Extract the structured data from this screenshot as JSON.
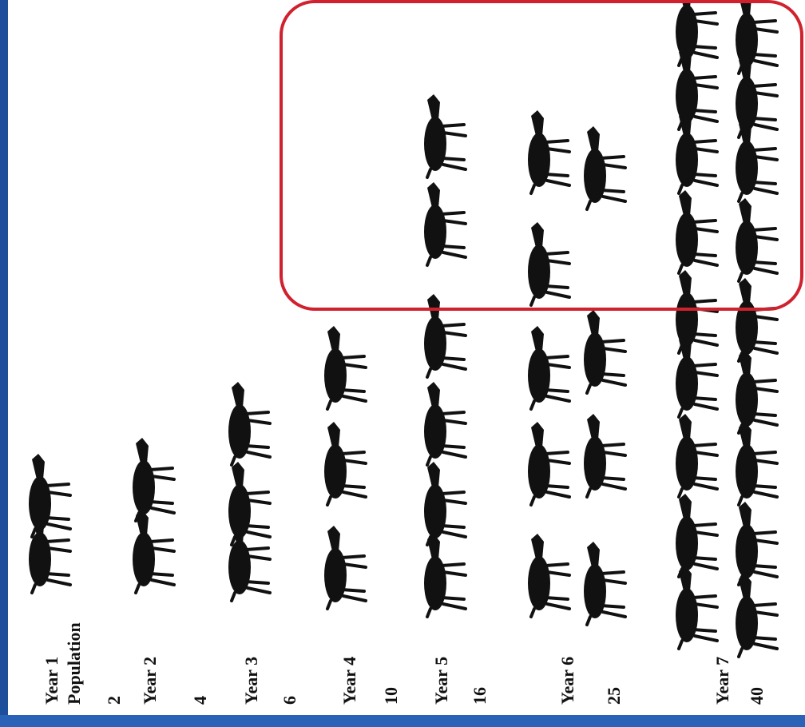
{
  "labels": [
    "Year 1",
    "Population",
    "2",
    "Year 2",
    "4",
    "Year 3",
    "6",
    "Year 4",
    "10",
    "Year 5",
    "16",
    "Year 6",
    "25",
    "Year 7",
    "40"
  ]
}
